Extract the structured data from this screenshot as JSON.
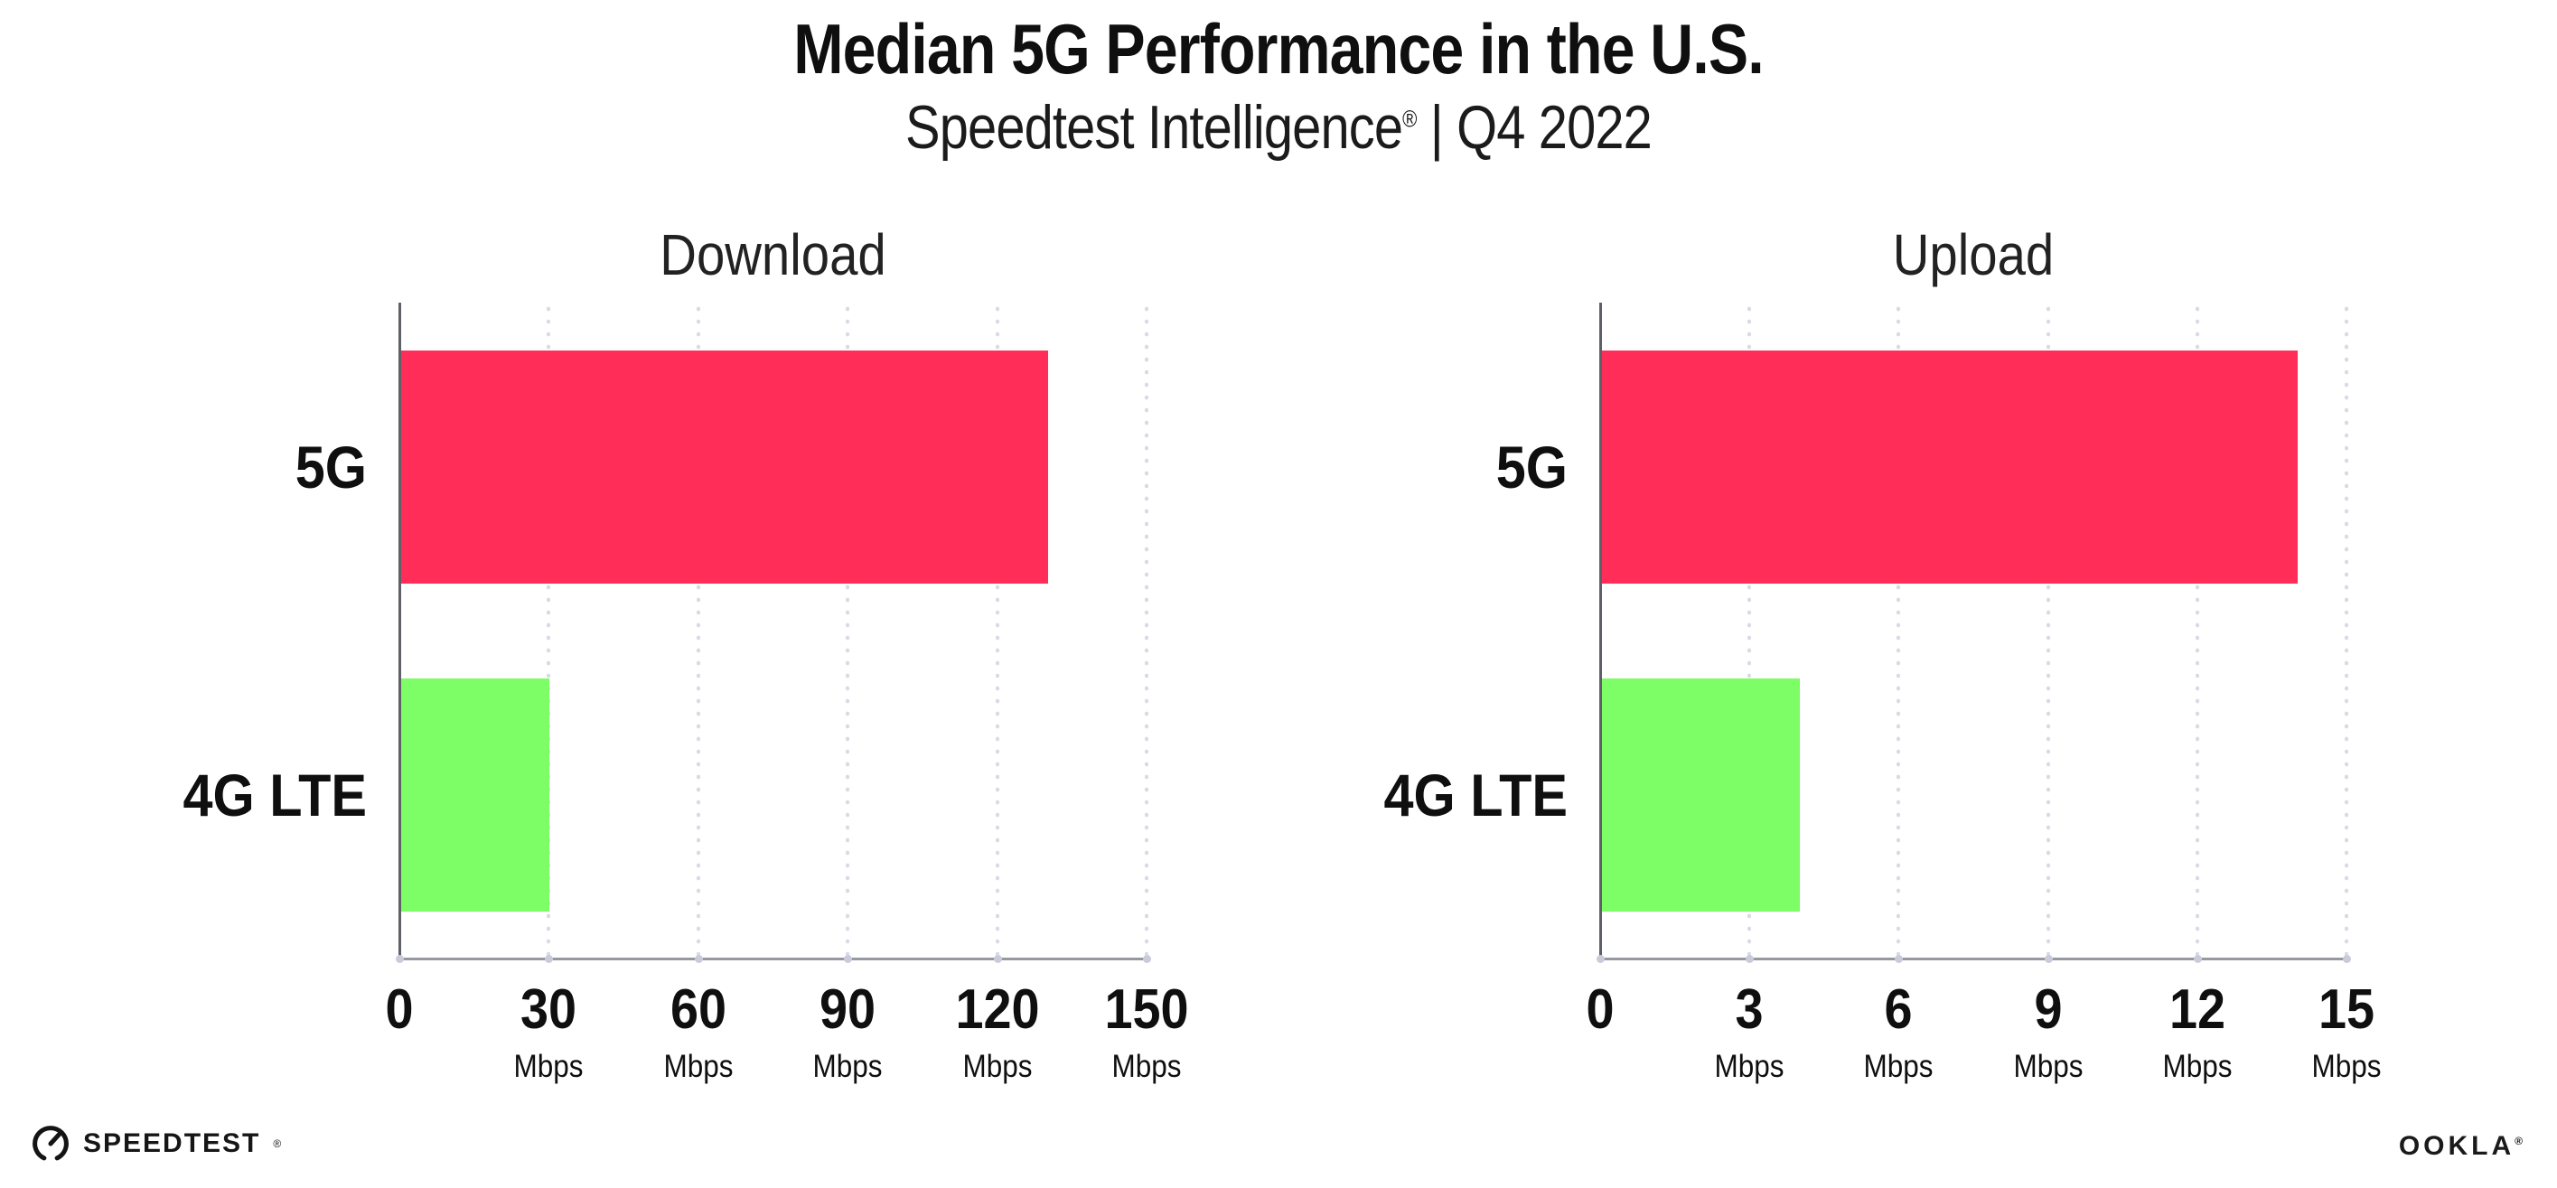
{
  "page": {
    "title": "Median 5G Performance in the U.S.",
    "subtitle_brand": "Speedtest Intelligence",
    "subtitle_reg": "®",
    "subtitle_rest": " | Q4 2022"
  },
  "footer": {
    "speedtest_label": "SPEEDTEST",
    "speedtest_reg": "®",
    "ookla_label": "OOKLA",
    "ookla_reg": "®"
  },
  "colors": {
    "bar_5g": "#FF2D57",
    "bar_4g_lte": "#7DFD66",
    "gridline": "#D8DAE6",
    "x_axis": "#97979F",
    "y_axis": "#5F5F68",
    "axis_dot": "#C8CBDA",
    "text": "#0F0F0F"
  },
  "chart_data": [
    {
      "type": "bar",
      "orientation": "horizontal",
      "title": "Download",
      "categories": [
        "5G",
        "4G LTE"
      ],
      "values": [
        130,
        30
      ],
      "unit": "Mbps",
      "xlabel": "",
      "ylabel": "",
      "xlim": [
        0,
        150
      ],
      "xticks": [
        0,
        30,
        60,
        90,
        120,
        150
      ],
      "bar_colors": [
        "#FF2D57",
        "#7DFD66"
      ],
      "grid": "dotted-vertical",
      "legend": "none"
    },
    {
      "type": "bar",
      "orientation": "horizontal",
      "title": "Upload",
      "categories": [
        "5G",
        "4G LTE"
      ],
      "values": [
        14,
        4
      ],
      "unit": "Mbps",
      "xlabel": "",
      "ylabel": "",
      "xlim": [
        0,
        15
      ],
      "xticks": [
        0,
        3,
        6,
        9,
        12,
        15
      ],
      "bar_colors": [
        "#FF2D57",
        "#7DFD66"
      ],
      "grid": "dotted-vertical",
      "legend": "none"
    }
  ]
}
